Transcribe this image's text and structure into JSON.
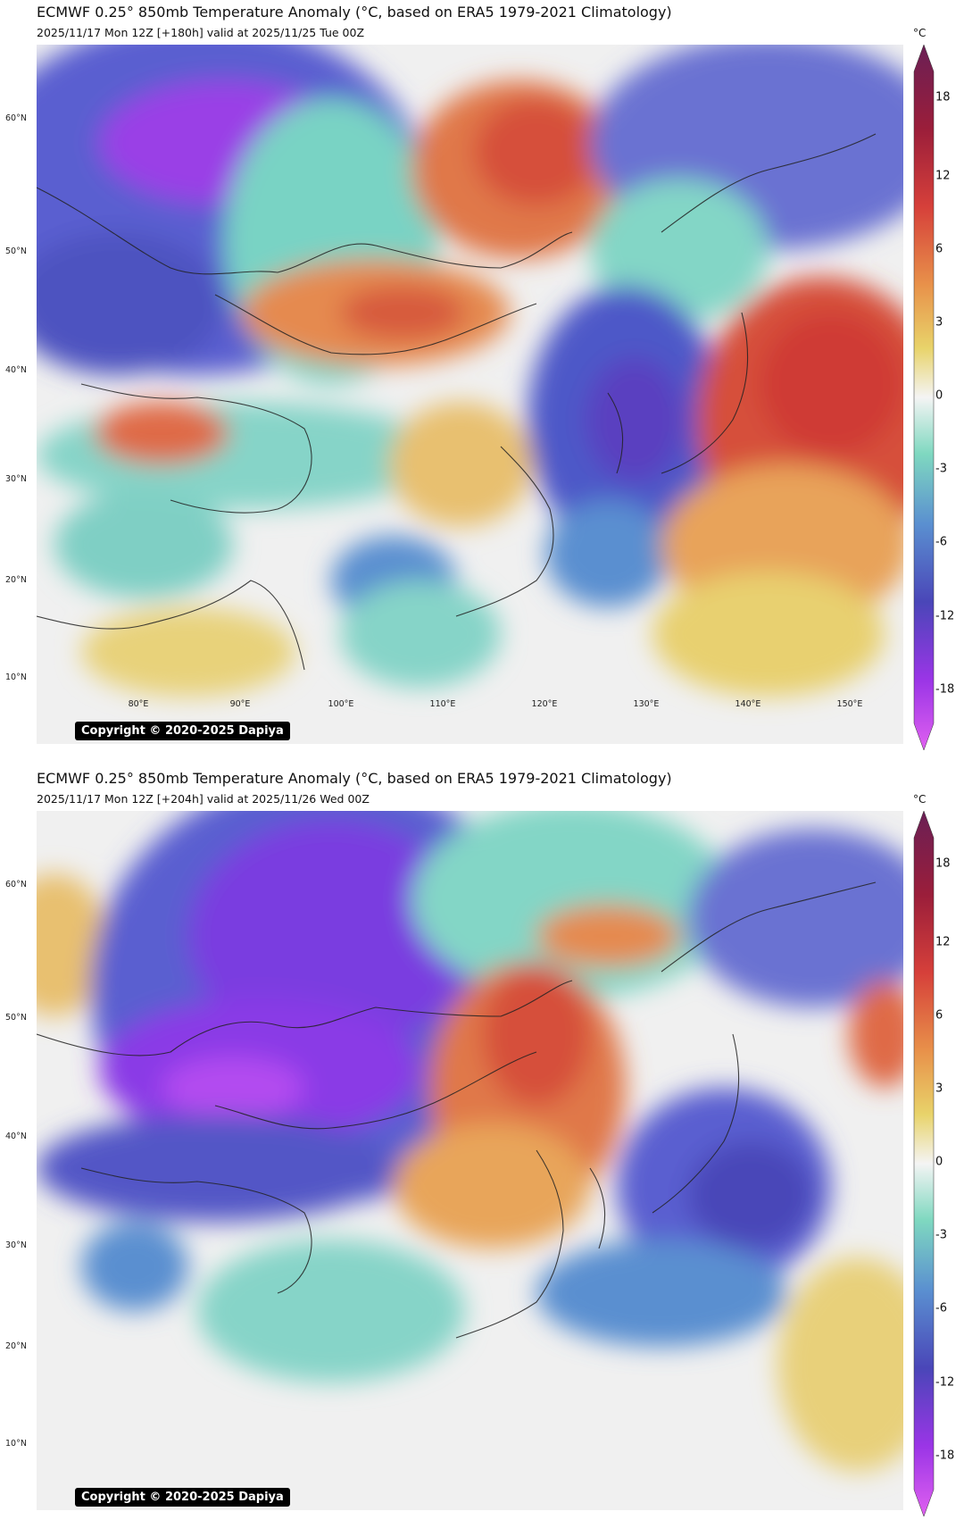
{
  "panels": [
    {
      "title": "ECMWF 0.25° 850mb Temperature Anomaly (°C, based on ERA5 1979-2021 Climatology)",
      "subtitle": "2025/11/17 Mon 12Z [+180h] valid at 2025/11/25 Tue 00Z",
      "copyright": "Copyright © 2020-2025 Dapiya"
    },
    {
      "title": "ECMWF 0.25° 850mb Temperature Anomaly (°C, based on ERA5 1979-2021 Climatology)",
      "subtitle": "2025/11/17 Mon 12Z [+204h] valid at 2025/11/26 Wed 00Z",
      "copyright": "Copyright © 2020-2025 Dapiya"
    }
  ],
  "lat_labels": [
    "60°N",
    "50°N",
    "40°N",
    "30°N",
    "20°N",
    "10°N"
  ],
  "lon_labels": [
    "80°E",
    "90°E",
    "100°E",
    "110°E",
    "120°E",
    "130°E",
    "140°E",
    "150°E"
  ],
  "colorbar": {
    "unit": "°C",
    "ticks": [
      "18",
      "12",
      "6",
      "3",
      "0",
      "-3",
      "-6",
      "-12",
      "-18"
    ]
  },
  "colors": {
    "neutral": "#f2f2f2",
    "warm_light": "#e8d36a",
    "warm_mid": "#e8914a",
    "warm_strong": "#d6403a",
    "cold_light": "#7fd8c0",
    "cold_mid": "#5a8fd0",
    "cold_strong": "#4a46b8",
    "cold_extreme": "#9a35e6"
  }
}
